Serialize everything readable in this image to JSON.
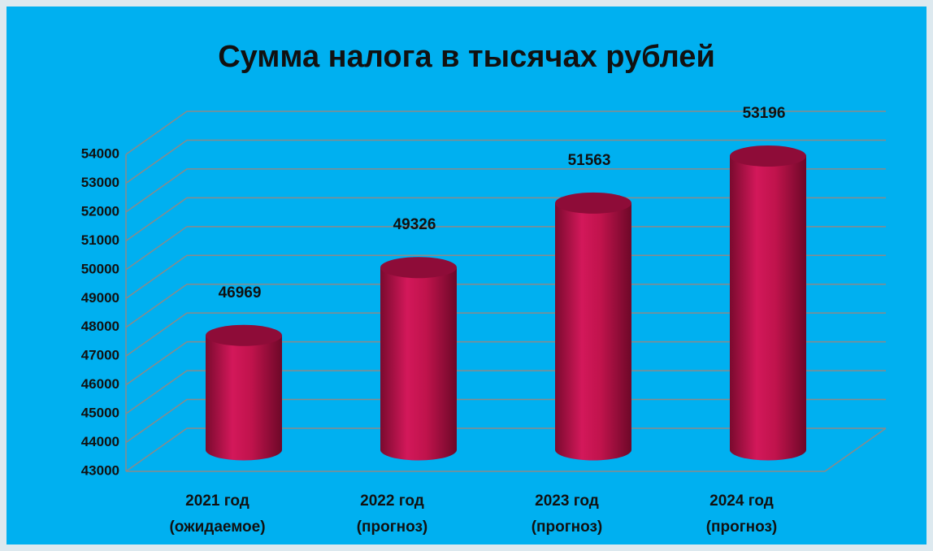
{
  "chart_data": {
    "type": "bar",
    "title": "Сумма налога в тысячах рублей",
    "categories": [
      "2021 год\n(ожидаемое)",
      "2022 год\n(прогноз)",
      "2023 год\n(прогноз)",
      "2024 год\n(прогноз)"
    ],
    "values": [
      46969,
      49326,
      51563,
      53196
    ],
    "color": "#c0134c",
    "ylim": [
      43000,
      54000
    ],
    "yticks": [
      43000,
      44000,
      45000,
      46000,
      47000,
      48000,
      49000,
      50000,
      51000,
      52000,
      53000,
      54000
    ],
    "grid": true
  }
}
